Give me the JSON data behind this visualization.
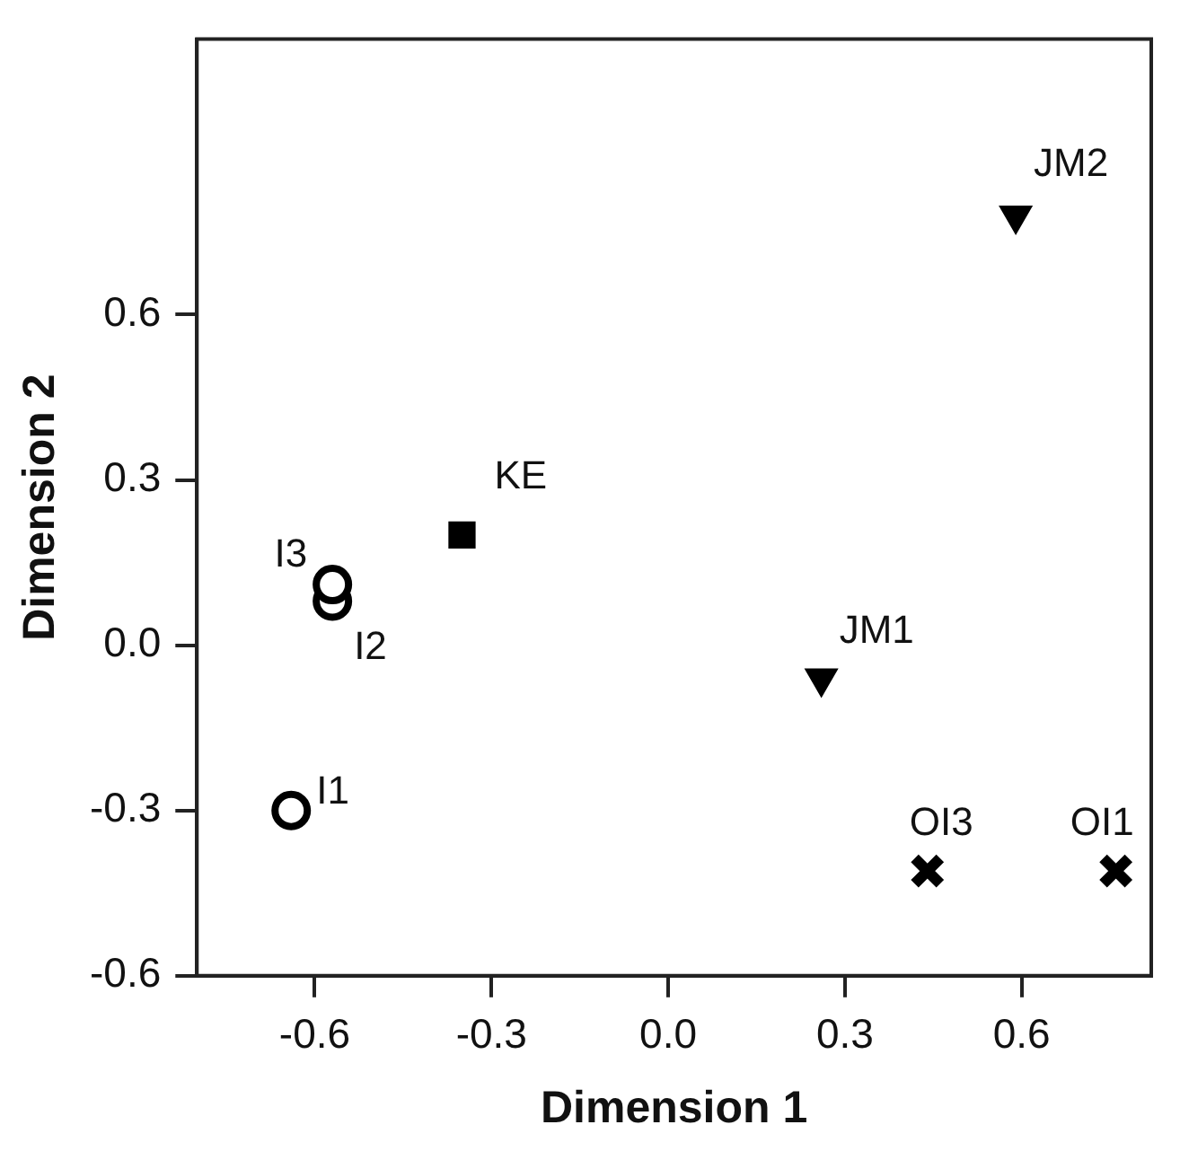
{
  "chart_data": {
    "type": "scatter",
    "xlabel": "Dimension 1",
    "ylabel": "Dimension 2",
    "xlim": [
      -0.8,
      0.82
    ],
    "ylim": [
      -0.6,
      1.1
    ],
    "xticks": [
      {
        "value": -0.6,
        "label": "-0.6"
      },
      {
        "value": -0.3,
        "label": "-0.3"
      },
      {
        "value": 0,
        "label": "0.0"
      },
      {
        "value": 0.3,
        "label": "0.3"
      },
      {
        "value": 0.6,
        "label": "0.6"
      }
    ],
    "yticks": [
      {
        "value": -0.6,
        "label": "-0.6"
      },
      {
        "value": -0.3,
        "label": "-0.3"
      },
      {
        "value": 0,
        "label": "0.0"
      },
      {
        "value": 0.3,
        "label": "0.3"
      },
      {
        "value": 0.6,
        "label": "0.6"
      }
    ],
    "grid": false,
    "legend": false,
    "series": [
      {
        "color": "#000000",
        "marker": "circle",
        "x": [
          -0.64,
          -0.57,
          -0.57
        ],
        "values": [
          -0.3,
          0.08,
          0.11
        ]
      },
      {
        "color": "#000000",
        "marker": "square",
        "x": [
          -0.35
        ],
        "values": [
          0.2
        ]
      },
      {
        "color": "#000000",
        "marker": "triangle",
        "x": [
          0.26,
          0.59
        ],
        "values": [
          -0.06,
          0.78
        ]
      },
      {
        "color": "#000000",
        "marker": "cross",
        "x": [
          0.44,
          0.76
        ],
        "values": [
          -0.41,
          -0.41
        ]
      }
    ],
    "annotations": [
      {
        "text": "I1",
        "x": -0.64,
        "y": -0.3
      },
      {
        "text": "I2",
        "x": -0.57,
        "y": 0.08
      },
      {
        "text": "I3",
        "x": -0.57,
        "y": 0.11
      },
      {
        "text": "KE",
        "x": -0.35,
        "y": 0.2
      },
      {
        "text": "JM1",
        "x": 0.26,
        "y": -0.06
      },
      {
        "text": "JM2",
        "x": 0.59,
        "y": 0.78
      },
      {
        "text": "OI3",
        "x": 0.44,
        "y": -0.41
      },
      {
        "text": "OI1",
        "x": 0.76,
        "y": -0.41
      }
    ]
  }
}
